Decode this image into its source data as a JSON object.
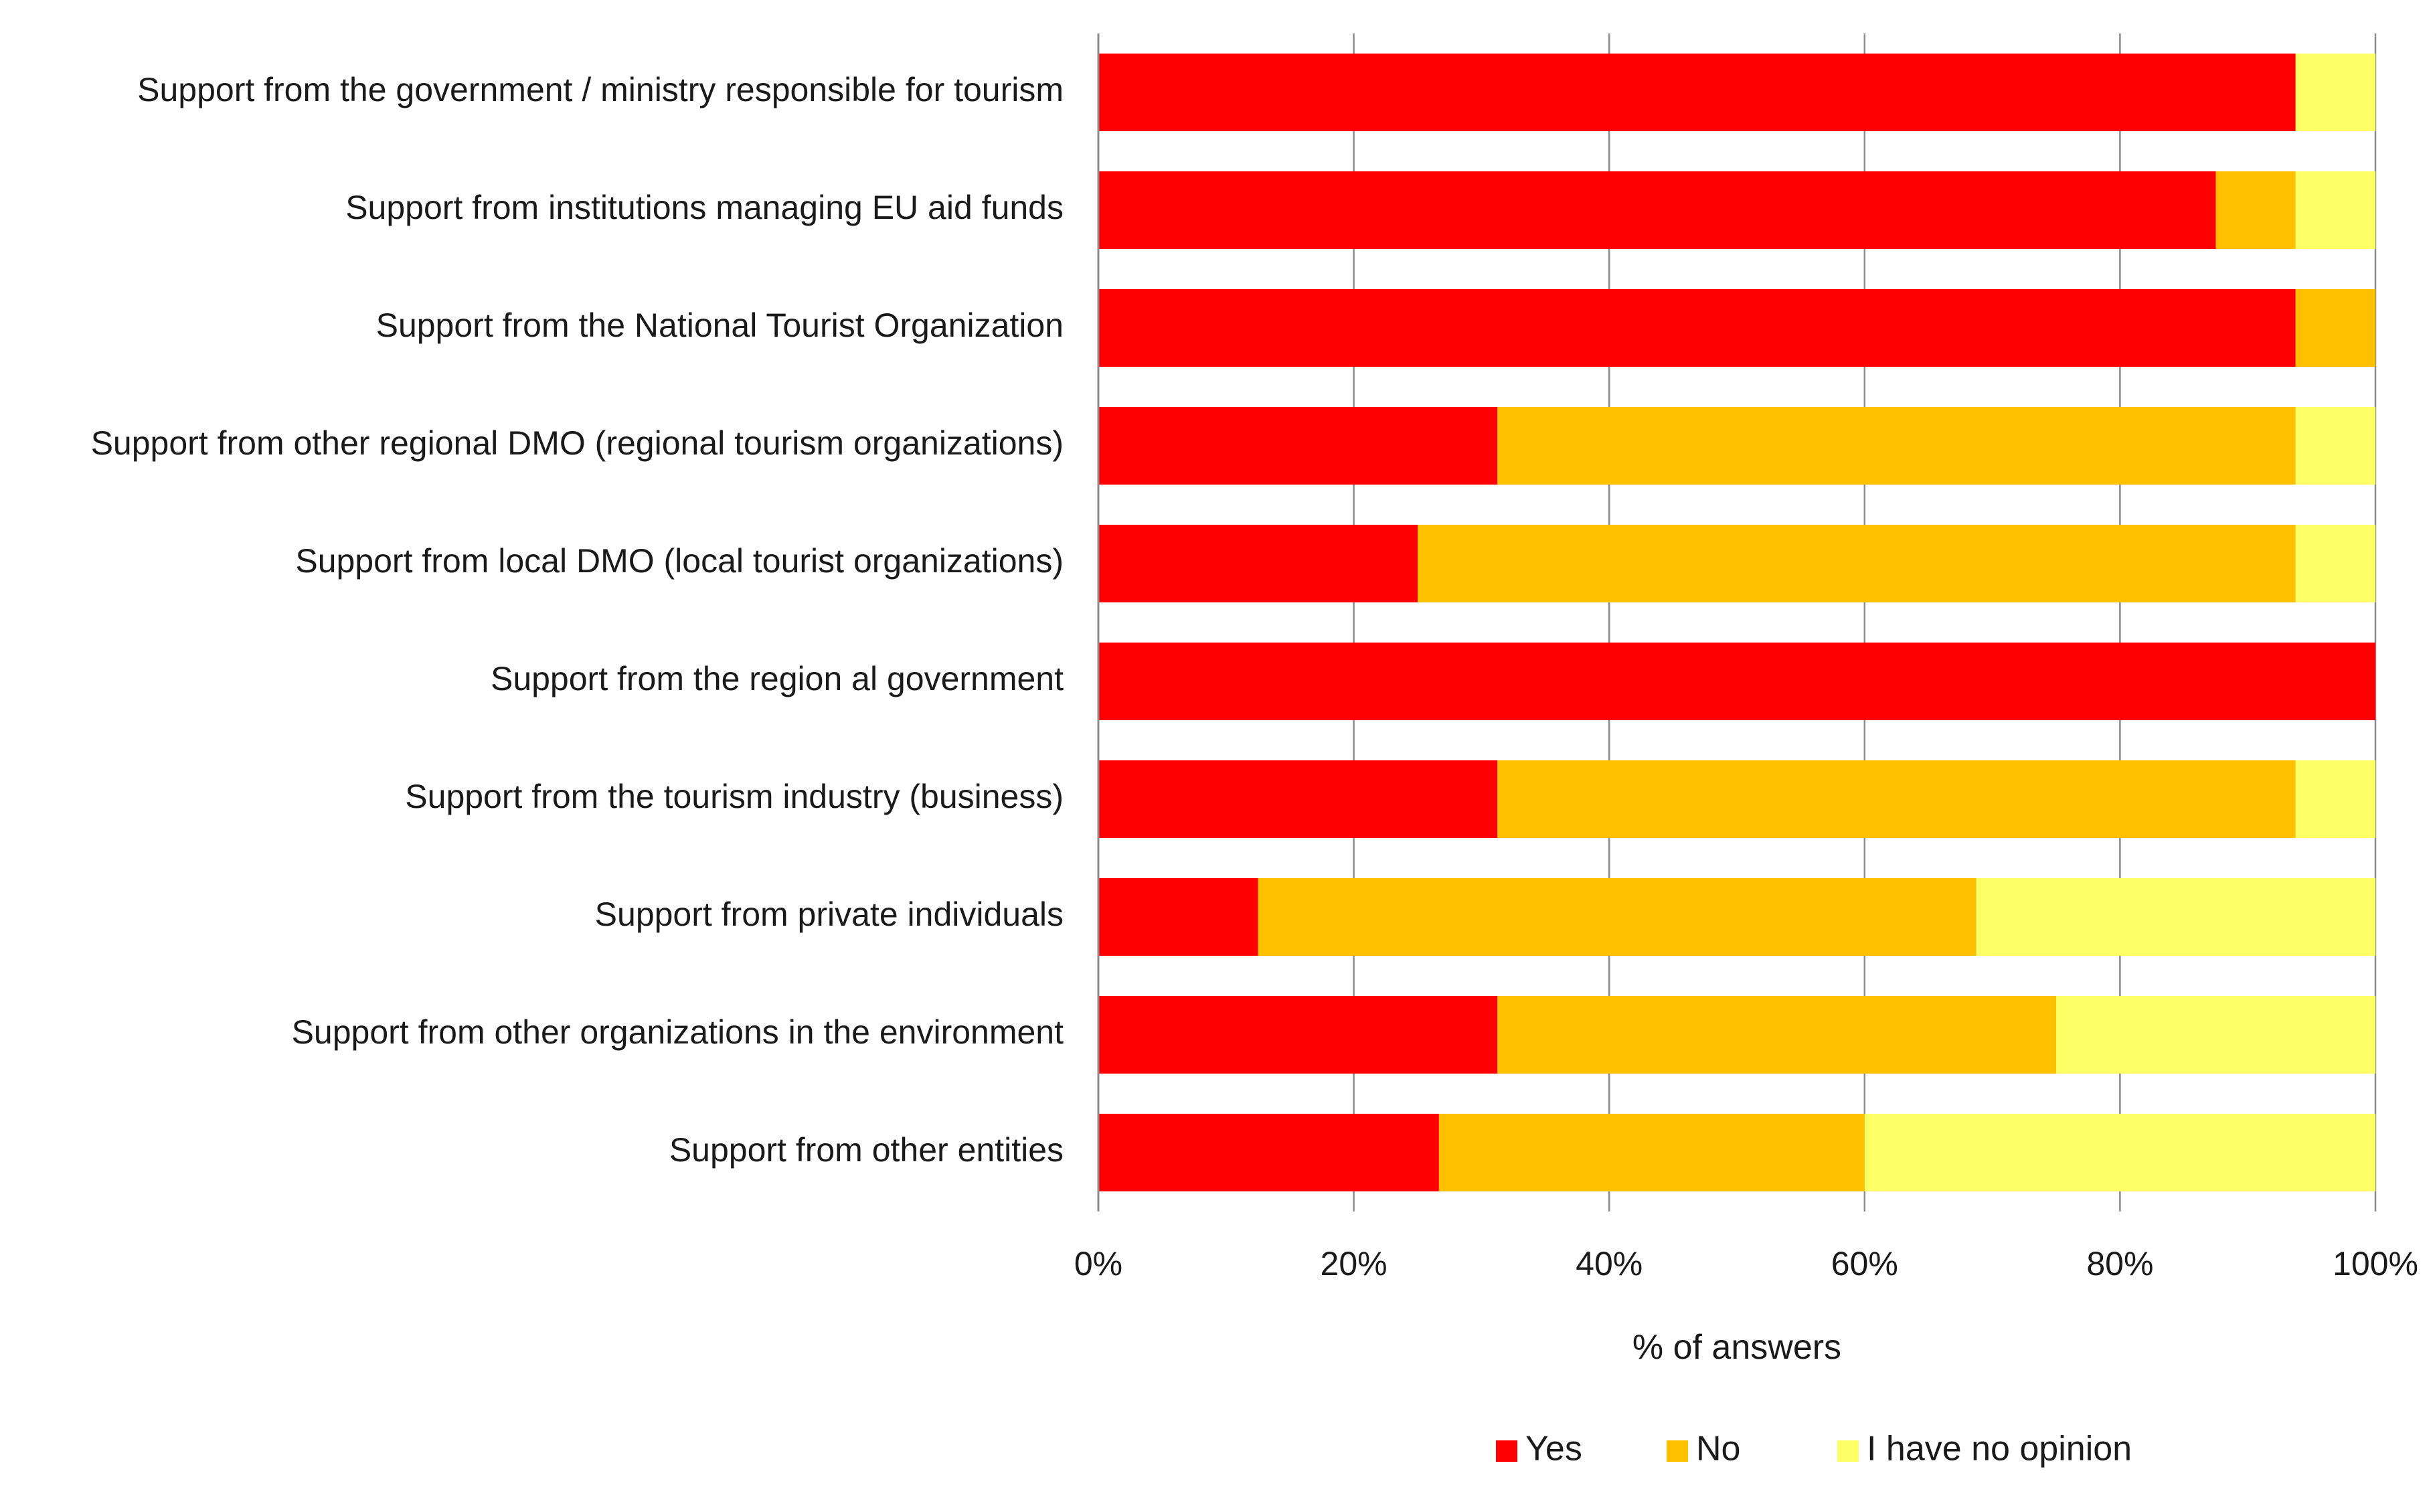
{
  "chart_data": {
    "type": "bar",
    "orientation": "horizontal",
    "stacked": true,
    "normalized": true,
    "title": "",
    "xlabel": "% of answers",
    "ylabel": "",
    "xlim": [
      0,
      100
    ],
    "x_ticks": [
      0,
      20,
      40,
      60,
      80,
      100
    ],
    "x_tick_labels": [
      "0%",
      "20%",
      "40%",
      "60%",
      "80%",
      "100%"
    ],
    "grid": "vertical",
    "legend_position": "bottom",
    "categories": [
      "Support from the government / ministry responsible for tourism",
      "Support from institutions managing EU aid funds",
      "Support from the National Tourist Organization",
      "Support from other regional DMO (regional tourism organizations)",
      "Support from local DMO (local tourist organizations)",
      "Support from the region al government",
      "Support from the tourism industry (business)",
      "Support from private individuals",
      "Support from other organizations in the environment",
      "Support from other entities"
    ],
    "series": [
      {
        "name": "Yes",
        "color": "#ff0000",
        "values": [
          93.75,
          87.5,
          93.75,
          31.25,
          25.0,
          100.0,
          31.25,
          12.5,
          31.25,
          26.67
        ]
      },
      {
        "name": "No",
        "color": "#ffc000",
        "values": [
          0.0,
          6.25,
          6.25,
          62.5,
          68.75,
          0.0,
          62.5,
          56.25,
          43.75,
          33.33
        ]
      },
      {
        "name": "I have no opinion",
        "color": "#ffff66",
        "values": [
          6.25,
          6.25,
          0.0,
          6.25,
          6.25,
          0.0,
          6.25,
          31.25,
          25.0,
          40.0
        ]
      }
    ]
  }
}
